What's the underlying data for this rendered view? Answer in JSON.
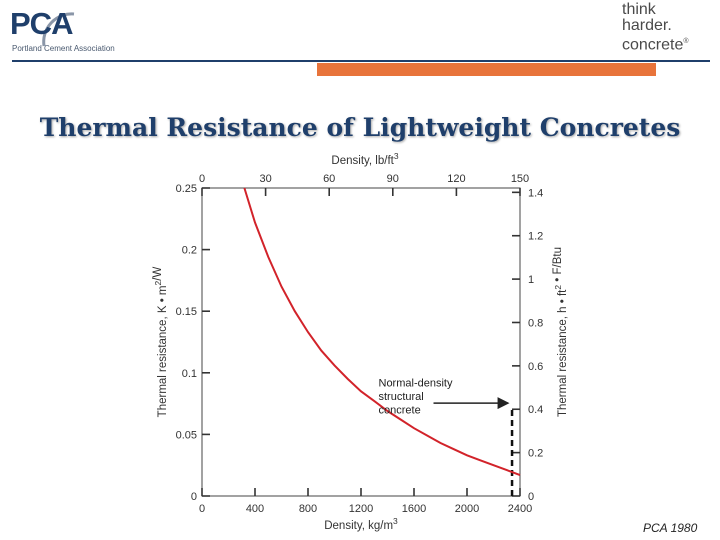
{
  "header": {
    "pca_logo_text": "PCA",
    "pca_subtitle": "Portland Cement Association",
    "tagline_lines": [
      "think",
      "harder.",
      "concrete"
    ],
    "tagline_tm": "®",
    "colors": {
      "navy": "#1f3f6b",
      "orange": "#e8743b"
    }
  },
  "slide": {
    "title": "Thermal Resistance of Lightweight Concretes",
    "source": "PCA 1980"
  },
  "chart_data": {
    "type": "line",
    "title": "Thermal Resistance of Lightweight Concretes",
    "x_bottom": {
      "label": "Density, kg/m3",
      "range": [
        0,
        2400
      ],
      "ticks": [
        0,
        400,
        800,
        1200,
        1600,
        2000,
        2400
      ]
    },
    "x_top": {
      "label": "Density, lb/ft3",
      "range": [
        0,
        150
      ],
      "ticks": [
        0,
        30,
        60,
        90,
        120,
        150
      ]
    },
    "y_left": {
      "label": "Thermal resistance, K • m2/W",
      "range": [
        0,
        0.25
      ],
      "ticks": [
        "0",
        "0.05",
        "0.1",
        "0.15",
        "0.2",
        "0.25"
      ]
    },
    "y_right": {
      "label": "Thermal resistance, h • ft2 • F/Btu",
      "range": [
        0,
        1.42
      ],
      "ticks": [
        "0",
        "0.2",
        "0.4",
        "0.6",
        "0.8",
        "1",
        "1.2",
        "1.4"
      ]
    },
    "series": [
      {
        "name": "Thermal resistance",
        "color": "#d2232a",
        "x": [
          320,
          400,
          500,
          600,
          700,
          800,
          900,
          1000,
          1100,
          1200,
          1300,
          1400,
          1500,
          1600,
          1700,
          1800,
          1900,
          2000,
          2100,
          2200,
          2300,
          2400
        ],
        "y": [
          0.25,
          0.222,
          0.194,
          0.17,
          0.15,
          0.133,
          0.118,
          0.106,
          0.095,
          0.085,
          0.077,
          0.069,
          0.062,
          0.055,
          0.049,
          0.043,
          0.038,
          0.033,
          0.029,
          0.025,
          0.021,
          0.017
        ]
      }
    ],
    "reference_line": {
      "x": 2340,
      "y": 0.073
    },
    "annotation": {
      "lines": [
        "Normal-density",
        "structural",
        "concrete"
      ],
      "x": 1800,
      "y": 0.075
    }
  }
}
